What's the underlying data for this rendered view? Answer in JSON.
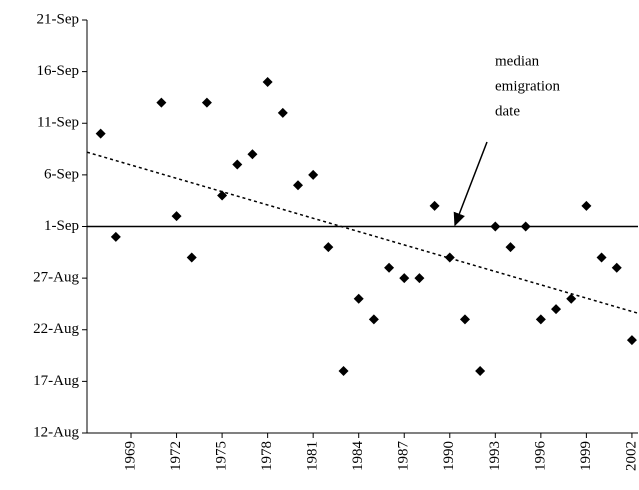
{
  "chart_data": {
    "type": "scatter",
    "x": [
      1967,
      1968,
      1971,
      1972,
      1973,
      1974,
      1975,
      1976,
      1977,
      1978,
      1979,
      1980,
      1981,
      1982,
      1983,
      1984,
      1985,
      1986,
      1987,
      1988,
      1989,
      1990,
      1991,
      1992,
      1993,
      1994,
      1995,
      1996,
      1997,
      1998,
      1999,
      2000,
      2001,
      2002
    ],
    "values": [
      253,
      243,
      256,
      245,
      241,
      256,
      247,
      250,
      251,
      258,
      255,
      248,
      249,
      242,
      230,
      237,
      235,
      240,
      239,
      239,
      246,
      241,
      235,
      230,
      244,
      242,
      244,
      235,
      236,
      237,
      246,
      241,
      240,
      233
    ],
    "color": "#000000",
    "xlim": [
      1966.1,
      2002.4
    ],
    "xticks": [
      1969,
      1972,
      1975,
      1978,
      1981,
      1984,
      1987,
      1990,
      1993,
      1996,
      1999,
      2002
    ],
    "ylim": [
      224,
      264
    ],
    "yticks": [
      {
        "value": 224,
        "label": "12-Aug"
      },
      {
        "value": 229,
        "label": "17-Aug"
      },
      {
        "value": 234,
        "label": "22-Aug"
      },
      {
        "value": 239,
        "label": "27-Aug"
      },
      {
        "value": 244,
        "label": "1-Sep"
      },
      {
        "value": 249,
        "label": "6-Sep"
      },
      {
        "value": 254,
        "label": "11-Sep"
      },
      {
        "value": 259,
        "label": "16-Sep"
      },
      {
        "value": 264,
        "label": "21-Sep"
      }
    ],
    "median_line": 244,
    "trend": {
      "x": [
        1966.1,
        2002.4
      ],
      "y": [
        251.2,
        235.6
      ]
    },
    "annotation": [
      "median",
      "emigration",
      "date"
    ]
  }
}
